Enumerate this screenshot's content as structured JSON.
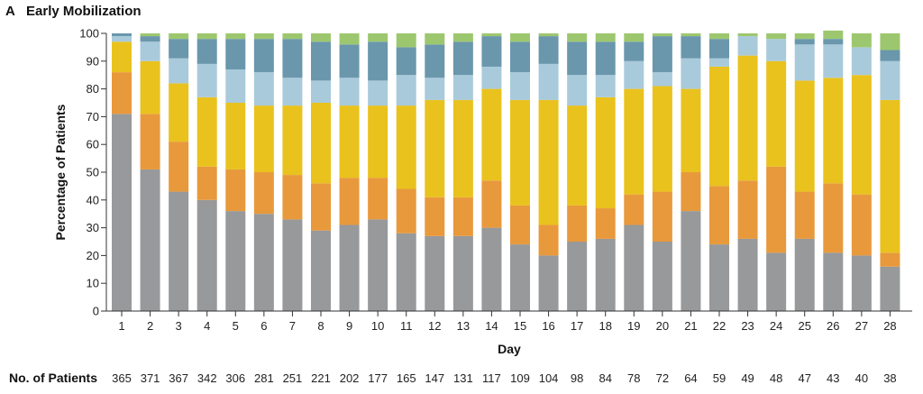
{
  "panel": {
    "letter": "A",
    "title": "Early Mobilization"
  },
  "chart_data": {
    "type": "bar",
    "stacked": true,
    "xlabel": "Day",
    "ylabel": "Percentage of Patients",
    "ylim": [
      0,
      100
    ],
    "yticks": [
      0,
      10,
      20,
      30,
      40,
      50,
      60,
      70,
      80,
      90,
      100
    ],
    "categories": [
      "1",
      "2",
      "3",
      "4",
      "5",
      "6",
      "7",
      "8",
      "9",
      "10",
      "11",
      "12",
      "13",
      "14",
      "15",
      "16",
      "17",
      "18",
      "19",
      "20",
      "21",
      "22",
      "23",
      "24",
      "25",
      "26",
      "27",
      "28"
    ],
    "footer_label": "No. of Patients",
    "patients": [
      "365",
      "371",
      "367",
      "342",
      "306",
      "281",
      "251",
      "221",
      "202",
      "177",
      "165",
      "147",
      "131",
      "117",
      "109",
      "104",
      "98",
      "84",
      "78",
      "72",
      "64",
      "59",
      "49",
      "48",
      "47",
      "43",
      "40",
      "38"
    ],
    "series": [
      {
        "color": "#97999b",
        "values": [
          71,
          51,
          43,
          40,
          36,
          35,
          33,
          29,
          31,
          33,
          28,
          27,
          27,
          30,
          24,
          20,
          25,
          26,
          31,
          25,
          36,
          24,
          26,
          21,
          26,
          21,
          20,
          16
        ]
      },
      {
        "color": "#e8993c",
        "values": [
          15,
          20,
          18,
          12,
          15,
          15,
          16,
          17,
          17,
          15,
          16,
          14,
          14,
          17,
          14,
          11,
          13,
          11,
          11,
          18,
          14,
          21,
          21,
          31,
          17,
          25,
          22,
          5
        ]
      },
      {
        "color": "#e9c21e",
        "values": [
          11,
          19,
          21,
          25,
          24,
          24,
          25,
          29,
          26,
          26,
          30,
          35,
          35,
          33,
          38,
          45,
          36,
          40,
          38,
          38,
          30,
          43,
          45,
          38,
          40,
          38,
          43,
          55
        ]
      },
      {
        "color": "#a9cadb",
        "values": [
          2,
          7,
          9,
          12,
          12,
          12,
          10,
          8,
          10,
          9,
          11,
          8,
          9,
          8,
          10,
          13,
          11,
          8,
          10,
          5,
          11,
          3,
          7,
          8,
          13,
          12,
          10,
          14
        ]
      },
      {
        "color": "#6a97ac",
        "values": [
          1,
          2,
          7,
          9,
          11,
          12,
          14,
          14,
          12,
          14,
          10,
          12,
          12,
          11,
          11,
          10,
          12,
          12,
          7,
          13,
          8,
          7,
          0,
          0,
          2,
          2,
          0,
          4
        ]
      },
      {
        "color": "#9dc76e",
        "values": [
          0,
          1,
          2,
          2,
          2,
          2,
          2,
          3,
          4,
          3,
          5,
          4,
          3,
          1,
          3,
          1,
          3,
          3,
          3,
          1,
          1,
          2,
          1,
          2,
          2,
          3,
          5,
          6
        ]
      }
    ]
  }
}
